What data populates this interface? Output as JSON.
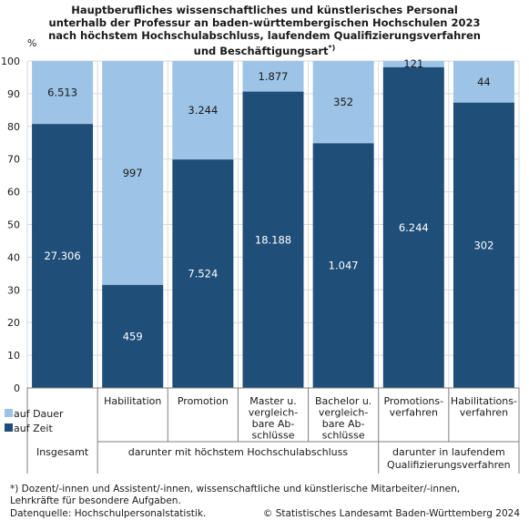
{
  "title_lines": [
    "Hauptberufliches wissenschaftliches und künstlerisches Personal",
    "unterhalb der Professur an baden-württembergischen Hochschulen 2023",
    "nach höchstem Hochschulabschluss, laufendem Qualifizierungsverfahren",
    "und Beschäftigungsart"
  ],
  "title_footnote_mark": "*)",
  "y_unit": "%",
  "chart_data": {
    "type": "bar",
    "stacked": true,
    "normalized": true,
    "categories": [
      [
        "Insgesamt"
      ],
      [
        "Habilitation"
      ],
      [
        "Promotion"
      ],
      [
        "Master u.",
        "vergleich-",
        "bare Ab-",
        "schlüsse"
      ],
      [
        "Bachelor u.",
        "vergleich-",
        "bare Ab-",
        "schlüsse"
      ],
      [
        "Promotions-",
        "verfahren"
      ],
      [
        "Habilitations-",
        "verfahren"
      ]
    ],
    "series": [
      {
        "name": "auf Zeit",
        "color": "#1f4e79",
        "values": [
          27306,
          459,
          7524,
          18188,
          1047,
          6244,
          302
        ],
        "labels": [
          "27.306",
          "459",
          "7.524",
          "18.188",
          "1.047",
          "6.244",
          "302"
        ]
      },
      {
        "name": "auf Dauer",
        "color": "#9dc3e6",
        "values": [
          6513,
          997,
          3244,
          1877,
          352,
          121,
          44
        ],
        "labels": [
          "6.513",
          "997",
          "3.244",
          "1.877",
          "352",
          "121",
          "44"
        ]
      }
    ],
    "ylim": [
      0,
      100
    ],
    "yticks": [
      0,
      10,
      20,
      30,
      40,
      50,
      60,
      70,
      80,
      90,
      100
    ],
    "grid": true,
    "legend_position": "bottom-left",
    "groups": [
      {
        "label": [
          "Insgesamt"
        ],
        "from": 0,
        "to": 0
      },
      {
        "label": [
          "darunter mit höchstem Hochschulabschluss"
        ],
        "from": 1,
        "to": 4
      },
      {
        "label": [
          "darunter in laufendem",
          "Qualifizierungsverfahren"
        ],
        "from": 5,
        "to": 6
      }
    ]
  },
  "footnote_lines": [
    "*) Dozent/-innen und Assistent/-innen, wissenschaftliche und künstlerische Mitarbeiter/-innen,",
    "Lehrkräfte für besondere Aufgaben."
  ],
  "source": "Datenquelle: Hochschulpersonalstatistik.",
  "copyright": "© Statistisches Landesamt Baden-Württemberg 2024"
}
